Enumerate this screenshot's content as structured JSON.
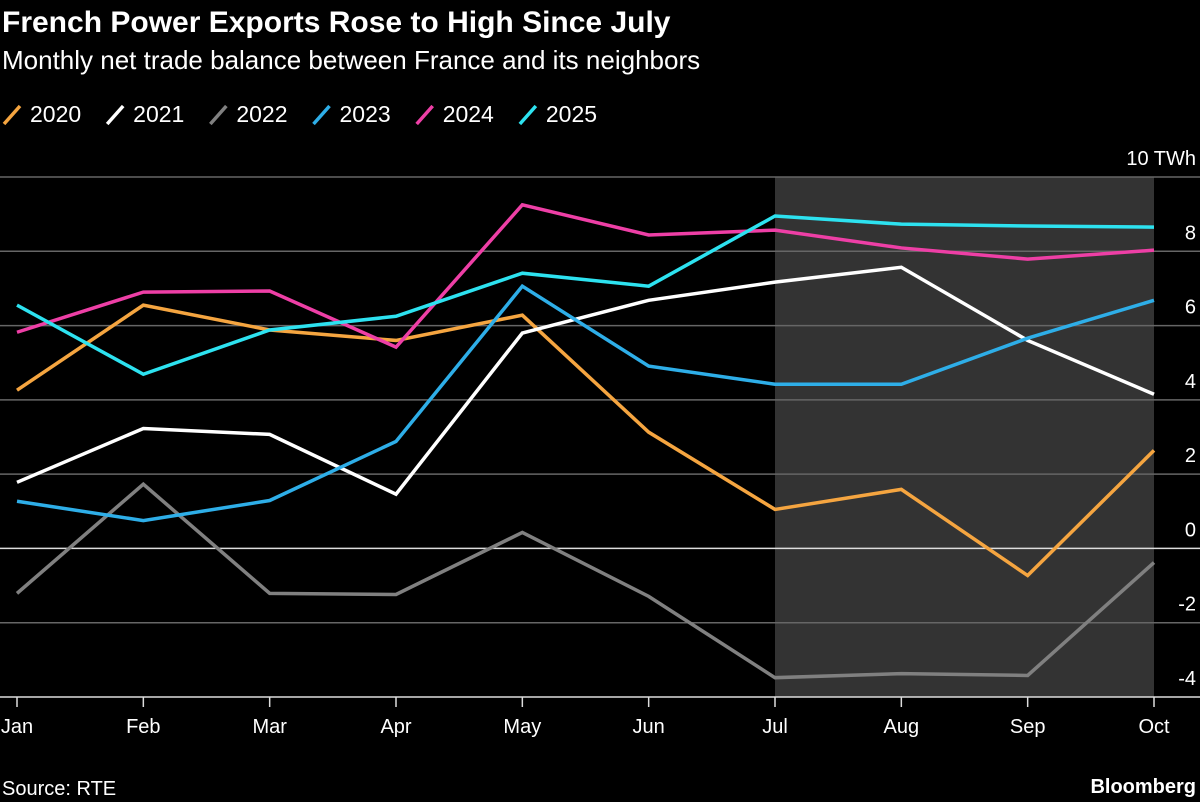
{
  "chart_data": {
    "type": "line",
    "title": "French Power Exports Rose to High Since July",
    "subtitle": "Monthly net trade balance between France and its neighbors",
    "categories": [
      "Jan",
      "Feb",
      "Mar",
      "Apr",
      "May",
      "Jun",
      "Jul",
      "Aug",
      "Sep",
      "Oct"
    ],
    "series": [
      {
        "name": "2020",
        "color": "#f5a540",
        "values": [
          4.26,
          6.55,
          5.88,
          5.6,
          6.28,
          3.13,
          1.05,
          1.59,
          -0.73,
          2.64
        ]
      },
      {
        "name": "2021",
        "color": "#ffffff",
        "values": [
          1.78,
          3.23,
          3.07,
          1.46,
          5.8,
          6.68,
          7.17,
          7.57,
          5.6,
          4.15
        ]
      },
      {
        "name": "2022",
        "color": "#808080",
        "values": [
          -1.21,
          1.73,
          -1.21,
          -1.24,
          0.43,
          -1.29,
          -3.48,
          -3.37,
          -3.42,
          -0.38
        ]
      },
      {
        "name": "2023",
        "color": "#2eaee8",
        "values": [
          1.27,
          0.75,
          1.29,
          2.88,
          7.06,
          4.91,
          4.42,
          4.42,
          5.66,
          6.68
        ]
      },
      {
        "name": "2024",
        "color": "#ee3fa6",
        "values": [
          5.82,
          6.9,
          6.93,
          5.42,
          9.25,
          8.44,
          8.57,
          8.09,
          7.79,
          8.03
        ]
      },
      {
        "name": "2025",
        "color": "#2de2f0",
        "values": [
          6.55,
          4.69,
          5.88,
          6.25,
          7.41,
          7.06,
          8.95,
          8.73,
          8.68,
          8.65
        ]
      }
    ],
    "ylim": [
      -4,
      10
    ],
    "yticks": [
      -4,
      -2,
      0,
      2,
      4,
      6,
      8,
      {
        "value": 10,
        "label": "10 TWh"
      }
    ],
    "grid": true,
    "shaded": {
      "from": "Jul",
      "to": "Oct"
    },
    "source": "Source: RTE",
    "brand": "Bloomberg"
  }
}
